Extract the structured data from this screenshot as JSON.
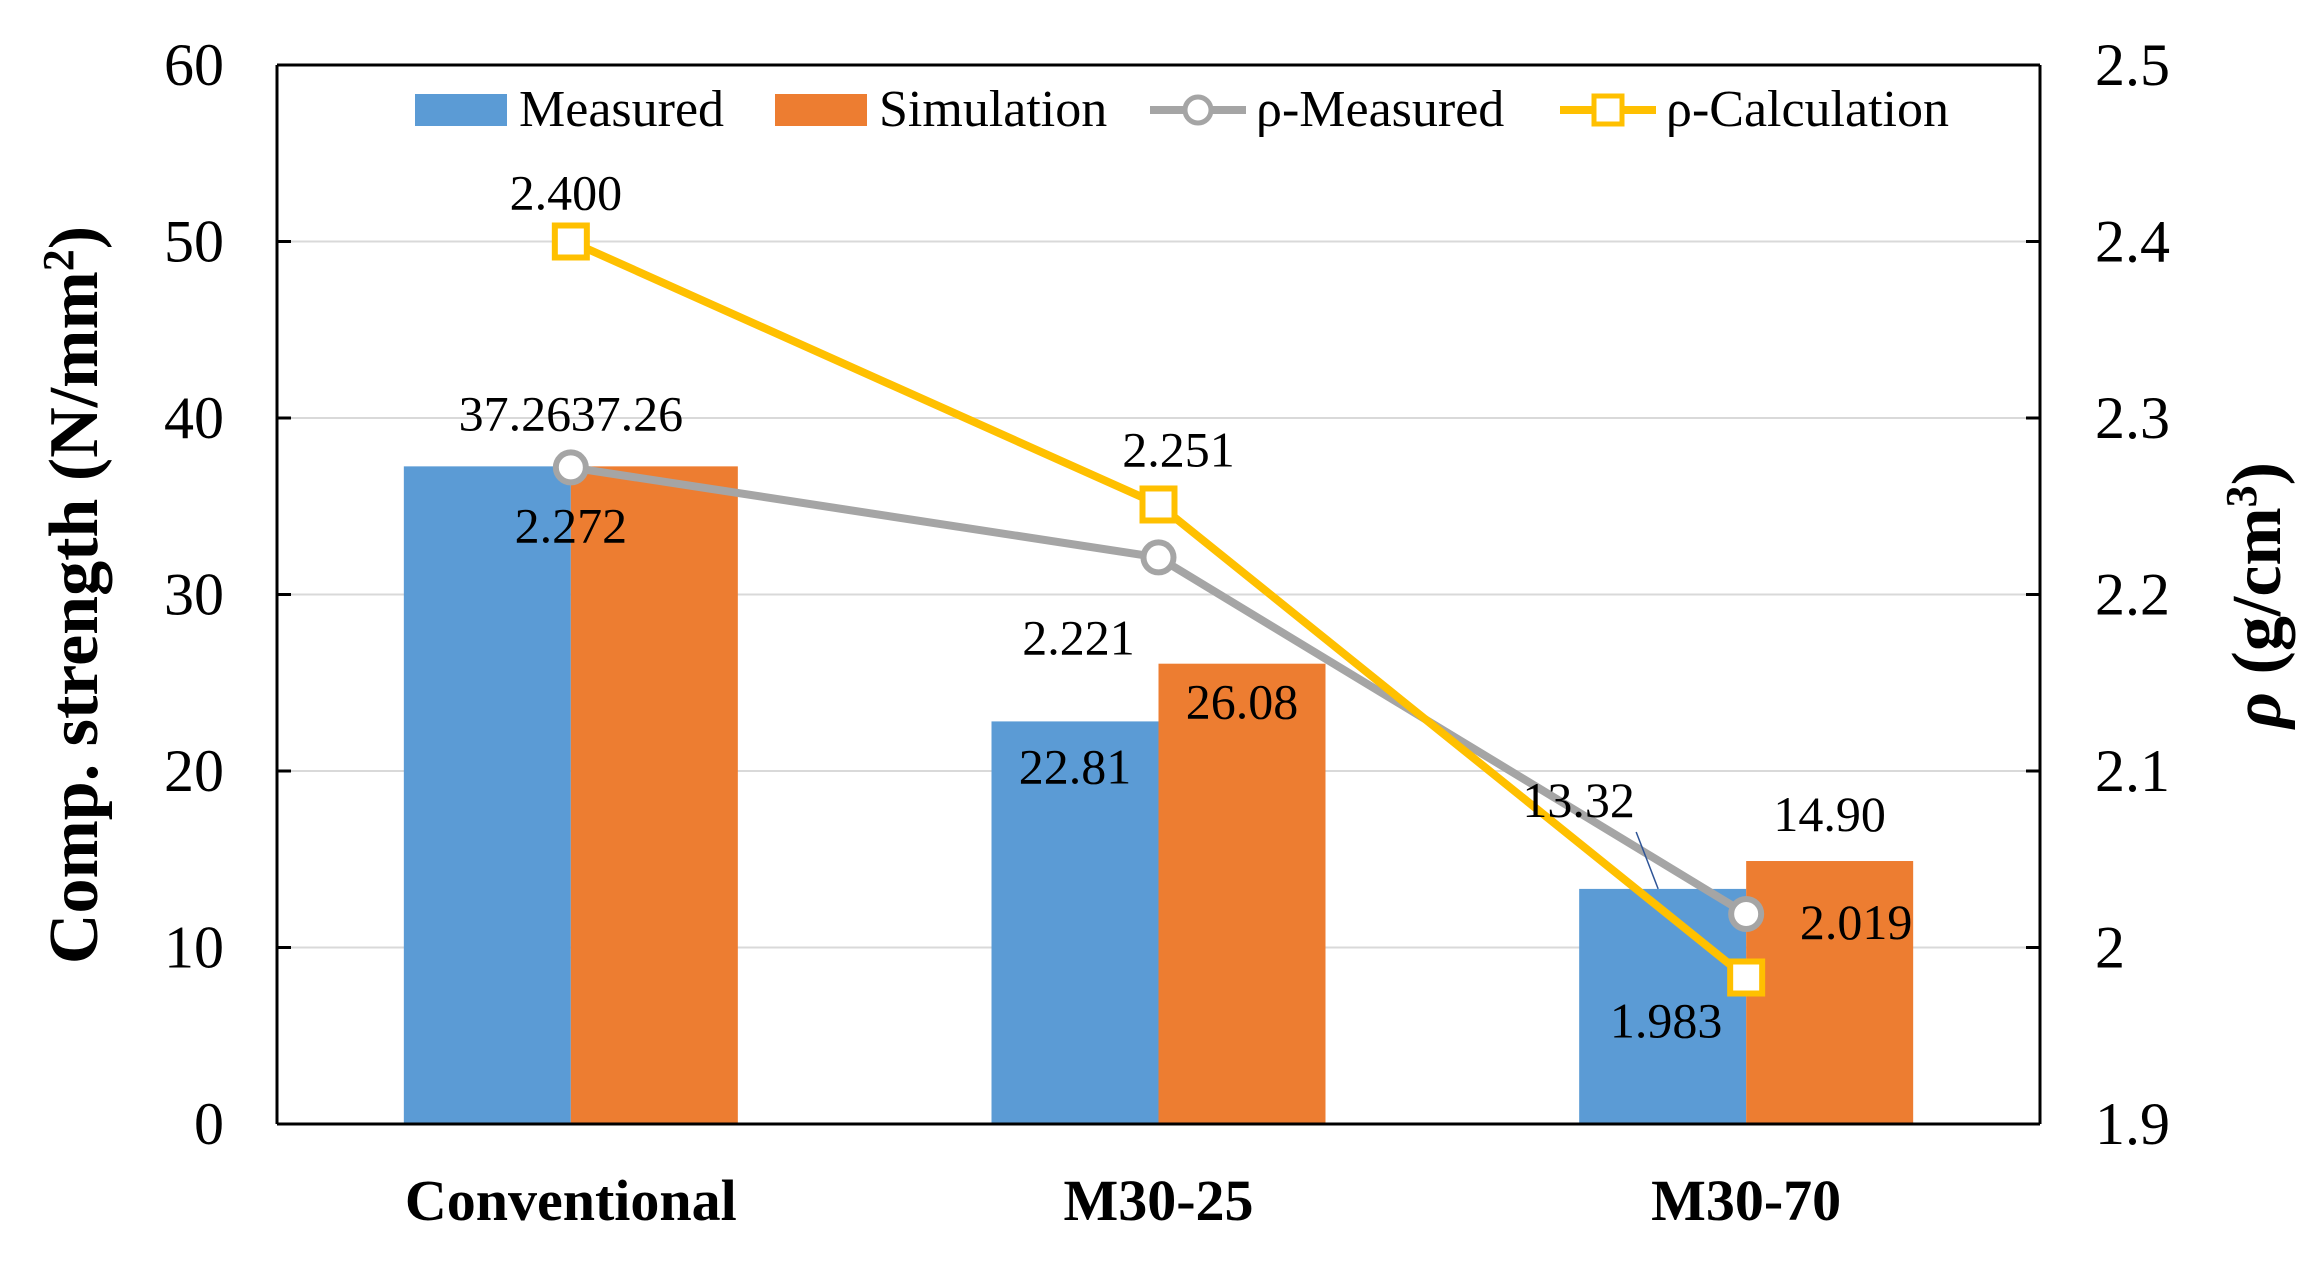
{
  "chart_data": {
    "type": "bar",
    "categories": [
      "Conventional",
      "M30-25",
      "M30-70"
    ],
    "series": [
      {
        "name": "Measured",
        "kind": "bar",
        "axis": "left",
        "color": "#5B9BD5",
        "values": [
          37.26,
          22.81,
          13.32
        ],
        "labels": [
          "37.26",
          "22.81",
          "13.32"
        ]
      },
      {
        "name": "Simulation",
        "kind": "bar",
        "axis": "left",
        "color": "#ED7D31",
        "values": [
          37.26,
          26.08,
          14.9
        ],
        "labels": [
          "37.26",
          "26.08",
          "14.90"
        ]
      },
      {
        "name": "ρ-Measured",
        "kind": "line",
        "marker": "circle",
        "axis": "right",
        "color": "#A5A5A5",
        "values": [
          2.272,
          2.221,
          2.019
        ],
        "labels": [
          "2.272",
          "2.221",
          "2.019"
        ]
      },
      {
        "name": "ρ-Calculation",
        "kind": "line",
        "marker": "square",
        "axis": "right",
        "color": "#FFC000",
        "values": [
          2.4,
          2.251,
          1.983
        ],
        "labels": [
          "2.400",
          "2.251",
          "1.983"
        ]
      }
    ],
    "ylabel": "Comp. strength (N/mm",
    "ylabel_sup": "2",
    "ylabel_close": ")",
    "y2label": "ρ (g/cm",
    "y2label_sup": "3",
    "y2label_close": ")",
    "ylim": [
      0,
      60
    ],
    "y_ticks": [
      "0",
      "10",
      "20",
      "30",
      "40",
      "50",
      "60"
    ],
    "y2lim": [
      1.9,
      2.5
    ],
    "y2_ticks": [
      "1.9",
      "2",
      "2.1",
      "2.2",
      "2.3",
      "2.4",
      "2.5"
    ],
    "grid": true,
    "legend_position": "top"
  }
}
